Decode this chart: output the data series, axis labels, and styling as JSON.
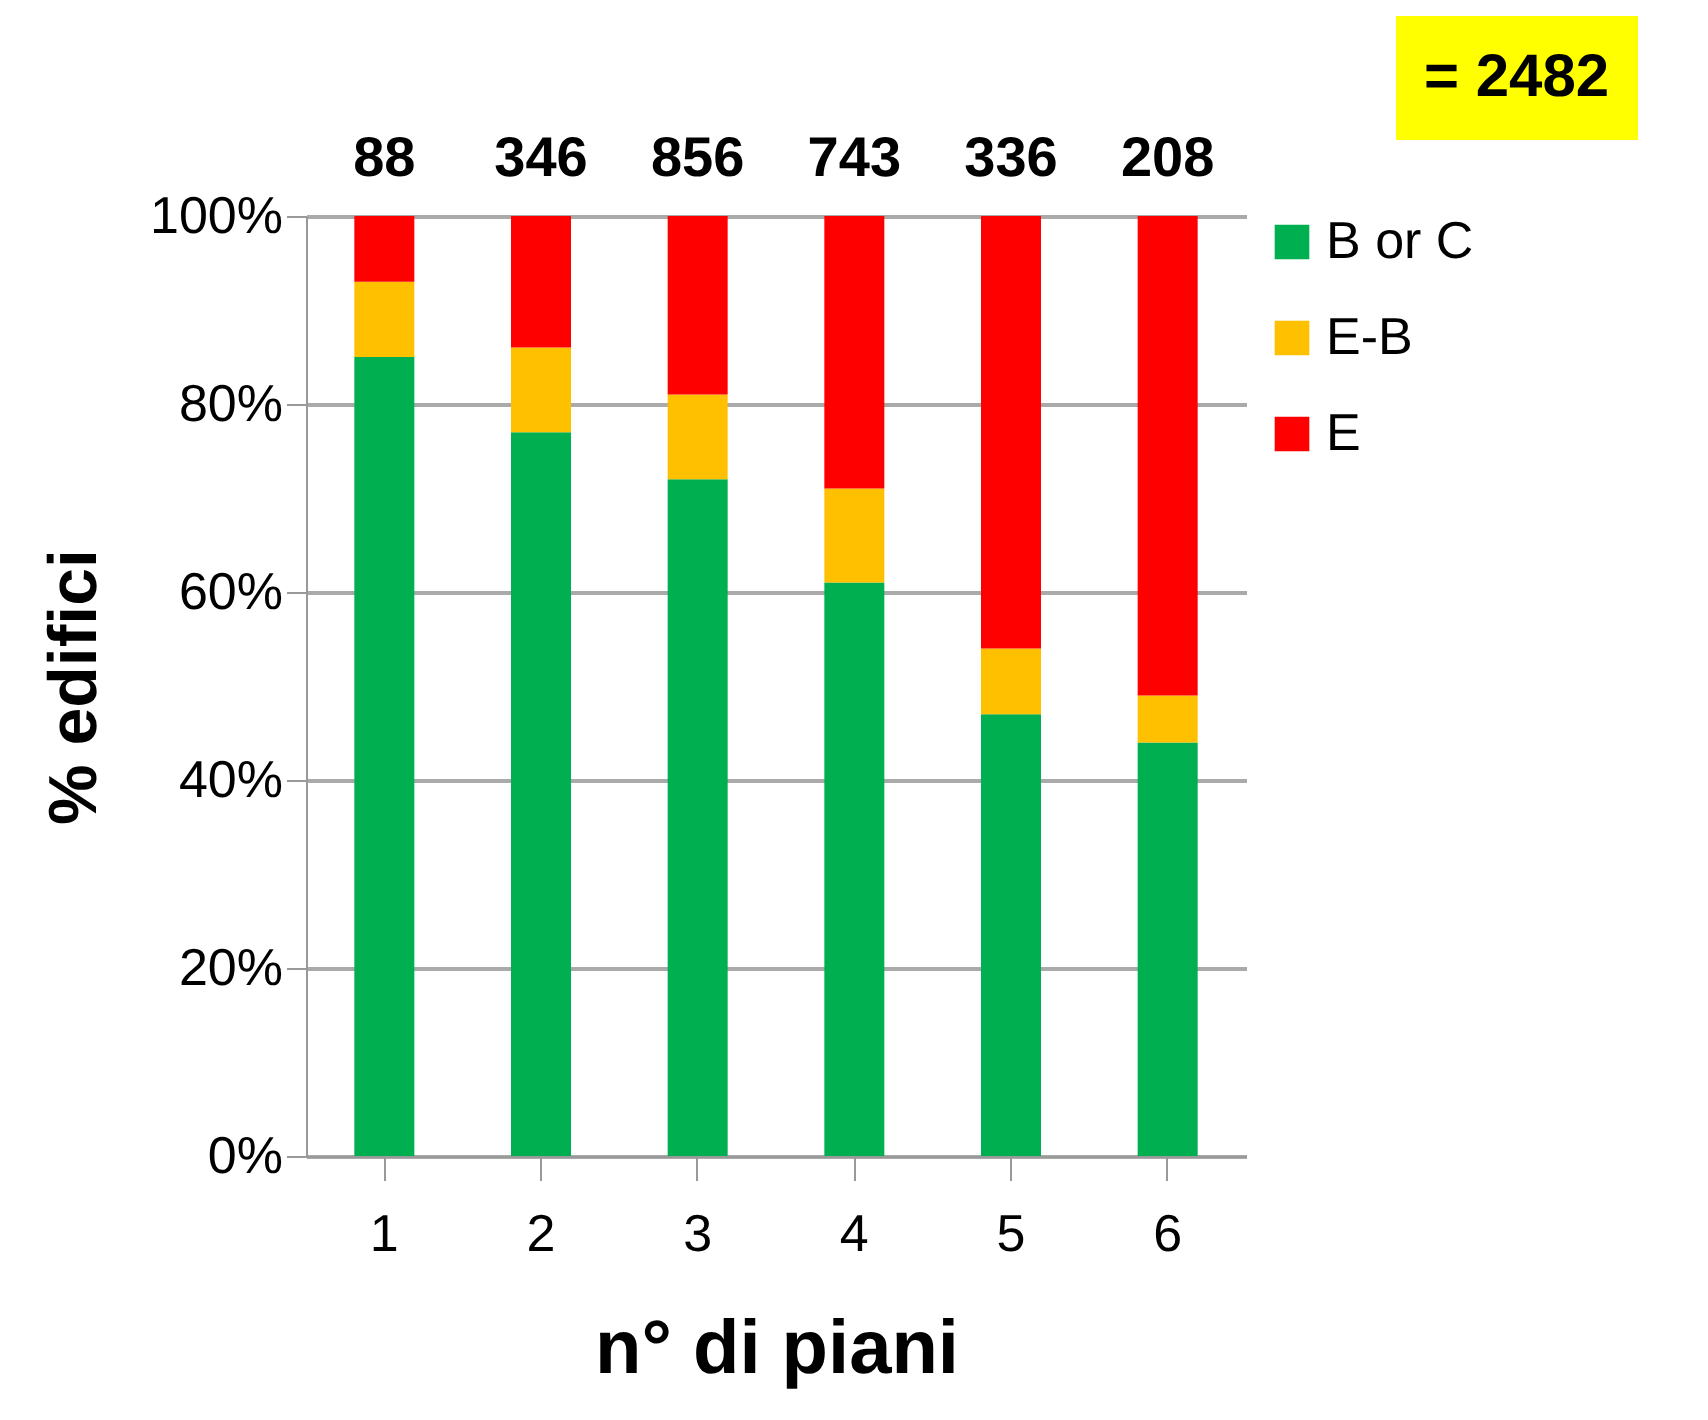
{
  "chart_data": {
    "type": "bar",
    "stacked": true,
    "xlabel": "n° di piani",
    "ylabel": "% edifici",
    "categories": [
      "1",
      "2",
      "3",
      "4",
      "5",
      "6"
    ],
    "series": [
      {
        "name": "B or C",
        "color": "#00b050",
        "values": [
          85,
          77,
          72,
          61,
          47,
          44
        ]
      },
      {
        "name": "E-B",
        "color": "#ffc000",
        "values": [
          8,
          9,
          9,
          10,
          7,
          5
        ]
      },
      {
        "name": "E",
        "color": "#ff0000",
        "values": [
          7,
          14,
          19,
          29,
          46,
          51
        ]
      }
    ],
    "ylim": [
      0,
      100
    ],
    "yticks": [
      {
        "value": 0,
        "label": "0%"
      },
      {
        "value": 20,
        "label": "20%"
      },
      {
        "value": 40,
        "label": "40%"
      },
      {
        "value": 60,
        "label": "60%"
      },
      {
        "value": 80,
        "label": "80%"
      },
      {
        "value": 100,
        "label": "100%"
      }
    ],
    "annotations": [
      "= 2482",
      {
        "text": "88",
        "x": "1",
        "y": 100
      },
      {
        "text": "346",
        "x": "2",
        "y": 100
      },
      {
        "text": "856",
        "x": "3",
        "y": 100
      },
      {
        "text": "743",
        "x": "4",
        "y": 100
      },
      {
        "text": "336",
        "x": "5",
        "y": 100
      },
      {
        "text": "208",
        "x": "6",
        "y": 100
      }
    ],
    "grid": "y",
    "legend": "right"
  }
}
